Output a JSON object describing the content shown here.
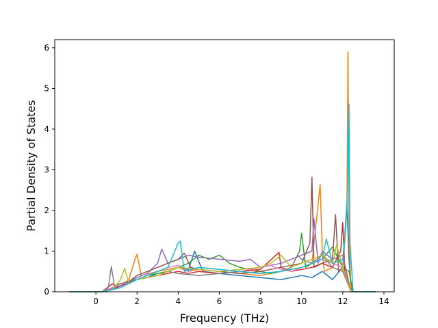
{
  "chart_data": {
    "type": "line",
    "xlabel": "Frequency (THz)",
    "ylabel": "Partial Density of States",
    "xlim": [
      -2,
      14.5
    ],
    "ylim": [
      0,
      6.2
    ],
    "xticks": [
      0,
      2,
      4,
      6,
      8,
      10,
      12,
      14
    ],
    "yticks": [
      0,
      1,
      2,
      3,
      4,
      5,
      6
    ],
    "grid": false,
    "legend": "none",
    "series_colors": [
      "#1f77b4",
      "#ff7f0e",
      "#2ca02c",
      "#d62728",
      "#9467bd",
      "#8c564b",
      "#e377c2",
      "#7f7f7f",
      "#bcbd22",
      "#17becf"
    ],
    "series": [
      {
        "color": "#1f77b4",
        "x": [
          -1.3,
          0.3,
          0.7,
          1.0,
          1.5,
          2.0,
          2.5,
          3.0,
          3.5,
          4.0,
          4.5,
          4.8,
          5.2,
          6.0,
          7.0,
          8.0,
          9.0,
          10.0,
          10.5,
          11.0,
          11.5,
          12.0,
          12.2,
          12.3,
          12.4,
          12.5,
          13.6
        ],
        "y": [
          0,
          0,
          0.05,
          0.12,
          0.2,
          0.3,
          0.35,
          0.45,
          0.5,
          0.6,
          0.55,
          1.0,
          0.5,
          0.45,
          0.4,
          0.35,
          0.3,
          0.4,
          0.35,
          0.5,
          0.3,
          0.6,
          2.2,
          0.8,
          0.1,
          0,
          0
        ]
      },
      {
        "color": "#ff7f0e",
        "x": [
          -1.3,
          0.3,
          0.8,
          1.2,
          1.6,
          1.9,
          2.0,
          2.2,
          2.6,
          3.0,
          3.5,
          4.0,
          4.5,
          5.0,
          6.0,
          7.0,
          8.0,
          9.0,
          10.0,
          10.5,
          10.9,
          11.0,
          11.1,
          11.5,
          12.0,
          12.2,
          12.25,
          12.3,
          12.4,
          13.6
        ],
        "y": [
          0,
          0,
          0.05,
          0.15,
          0.3,
          0.8,
          0.92,
          0.4,
          0.45,
          0.5,
          0.55,
          0.6,
          0.5,
          0.55,
          0.5,
          0.45,
          0.4,
          0.5,
          0.6,
          0.7,
          2.64,
          1.0,
          0.5,
          0.6,
          0.5,
          2.0,
          5.9,
          1.5,
          0,
          0
        ]
      },
      {
        "color": "#2ca02c",
        "x": [
          -1.3,
          0.3,
          0.7,
          1.1,
          1.5,
          2.0,
          2.5,
          3.0,
          3.5,
          4.0,
          4.5,
          5.0,
          5.5,
          6.0,
          6.5,
          7.0,
          7.5,
          8.0,
          8.5,
          9.0,
          9.5,
          9.9,
          10.0,
          10.2,
          10.5,
          11.0,
          11.5,
          12.0,
          12.3,
          12.5,
          13.6
        ],
        "y": [
          0,
          0,
          0.05,
          0.12,
          0.25,
          0.3,
          0.4,
          0.45,
          0.5,
          0.6,
          0.7,
          0.9,
          0.8,
          0.9,
          0.7,
          0.6,
          0.55,
          0.5,
          0.45,
          0.5,
          0.6,
          1.0,
          1.44,
          0.6,
          0.7,
          0.8,
          1.1,
          0.6,
          0.5,
          0,
          0
        ]
      },
      {
        "color": "#d62728",
        "x": [
          -1.3,
          0.3,
          0.8,
          1.0,
          1.5,
          2.0,
          2.5,
          3.0,
          3.5,
          4.0,
          4.5,
          5.0,
          6.0,
          7.0,
          8.0,
          8.9,
          9.0,
          9.5,
          10.0,
          10.5,
          11.0,
          11.5,
          11.9,
          12.0,
          12.1,
          12.4,
          13.6
        ],
        "y": [
          0,
          0,
          0.2,
          0.1,
          0.2,
          0.3,
          0.35,
          0.4,
          0.45,
          0.5,
          0.45,
          0.5,
          0.45,
          0.5,
          0.55,
          0.97,
          0.6,
          0.5,
          0.55,
          0.6,
          0.7,
          0.6,
          1.0,
          1.7,
          0.5,
          0,
          0
        ]
      },
      {
        "color": "#9467bd",
        "x": [
          -1.3,
          0.3,
          0.8,
          1.2,
          1.6,
          2.0,
          2.5,
          3.0,
          3.2,
          3.5,
          4.0,
          4.5,
          5.0,
          6.0,
          7.0,
          7.5,
          8.0,
          9.0,
          9.5,
          10.0,
          10.5,
          10.6,
          10.8,
          11.0,
          11.5,
          12.0,
          12.4,
          13.6
        ],
        "y": [
          0,
          0,
          0.08,
          0.15,
          0.25,
          0.35,
          0.45,
          0.7,
          1.05,
          0.7,
          0.8,
          0.9,
          0.85,
          0.8,
          0.75,
          0.8,
          0.6,
          0.7,
          0.8,
          0.9,
          1.0,
          1.8,
          0.7,
          1.0,
          0.8,
          0.9,
          0,
          0
        ]
      },
      {
        "color": "#8c564b",
        "x": [
          -1.3,
          0.3,
          0.8,
          1.2,
          1.6,
          2.0,
          2.5,
          3.0,
          3.5,
          4.0,
          4.3,
          4.6,
          5.0,
          6.0,
          7.0,
          8.0,
          9.0,
          10.0,
          10.4,
          10.5,
          10.6,
          11.0,
          11.5,
          11.65,
          11.8,
          12.0,
          12.4,
          13.6
        ],
        "y": [
          0,
          0,
          0.1,
          0.2,
          0.25,
          0.4,
          0.5,
          0.6,
          0.7,
          0.8,
          0.95,
          0.6,
          0.55,
          0.5,
          0.45,
          0.5,
          0.6,
          0.7,
          1.2,
          2.82,
          0.6,
          0.7,
          0.8,
          1.9,
          0.5,
          0.6,
          0,
          0
        ]
      },
      {
        "color": "#e377c2",
        "x": [
          -1.3,
          0.3,
          0.8,
          1.2,
          1.6,
          2.0,
          2.5,
          3.0,
          3.5,
          4.0,
          4.5,
          5.0,
          6.0,
          7.0,
          8.0,
          8.5,
          9.0,
          9.5,
          10.0,
          10.5,
          11.0,
          11.5,
          12.0,
          12.4,
          13.6
        ],
        "y": [
          0,
          0,
          0.1,
          0.2,
          0.2,
          0.3,
          0.4,
          0.5,
          0.6,
          0.65,
          0.5,
          0.6,
          0.55,
          0.5,
          0.6,
          0.65,
          0.55,
          0.5,
          0.6,
          0.7,
          0.8,
          0.7,
          0.6,
          0,
          0
        ]
      },
      {
        "color": "#7f7f7f",
        "x": [
          -1.3,
          0.3,
          0.6,
          0.75,
          0.9,
          1.2,
          1.6,
          2.0,
          2.5,
          3.0,
          3.5,
          4.0,
          5.0,
          6.0,
          7.0,
          8.0,
          9.0,
          9.5,
          9.8,
          10.0,
          10.5,
          11.0,
          11.5,
          12.0,
          12.4,
          13.6
        ],
        "y": [
          0,
          0,
          0.1,
          0.62,
          0.15,
          0.2,
          0.25,
          0.3,
          0.35,
          0.4,
          0.5,
          0.45,
          0.4,
          0.45,
          0.5,
          0.45,
          0.5,
          0.6,
          0.9,
          0.8,
          0.7,
          0.9,
          0.6,
          0.5,
          0,
          0
        ]
      },
      {
        "color": "#bcbd22",
        "x": [
          -1.3,
          0.3,
          0.8,
          1.2,
          1.4,
          1.6,
          2.0,
          2.5,
          3.0,
          3.5,
          4.0,
          5.0,
          6.0,
          7.0,
          8.0,
          8.5,
          9.0,
          9.5,
          10.0,
          10.5,
          11.0,
          11.5,
          11.7,
          12.0,
          12.4,
          13.6
        ],
        "y": [
          0,
          0,
          0.05,
          0.3,
          0.58,
          0.2,
          0.3,
          0.35,
          0.4,
          0.5,
          0.6,
          0.55,
          0.5,
          0.55,
          0.6,
          0.7,
          0.9,
          0.6,
          0.7,
          0.8,
          0.9,
          0.7,
          1.15,
          0.6,
          0,
          0
        ]
      },
      {
        "color": "#17becf",
        "x": [
          -1.3,
          0.3,
          0.8,
          1.2,
          1.6,
          2.0,
          2.5,
          3.0,
          3.5,
          4.0,
          4.1,
          4.3,
          5.0,
          6.0,
          7.0,
          8.0,
          9.0,
          10.0,
          10.5,
          11.0,
          11.2,
          11.5,
          12.0,
          12.2,
          12.3,
          12.35,
          12.5,
          13.6
        ],
        "y": [
          0,
          0,
          0.05,
          0.1,
          0.2,
          0.3,
          0.4,
          0.5,
          0.6,
          1.2,
          1.25,
          0.5,
          0.6,
          0.55,
          0.5,
          0.45,
          0.5,
          0.6,
          0.7,
          0.8,
          1.3,
          0.7,
          0.8,
          2.0,
          4.62,
          1.2,
          0,
          0
        ]
      }
    ]
  }
}
